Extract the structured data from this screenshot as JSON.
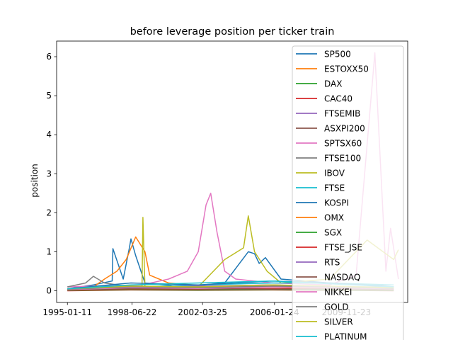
{
  "chart_data": {
    "type": "line",
    "title": "before leverage position per ticker train",
    "xlabel": "",
    "ylabel": "position",
    "xlim": [
      "1994-06-15",
      "2013-03-01"
    ],
    "ylim": [
      -0.3,
      6.4
    ],
    "x_ticks": [
      "1995-01-11",
      "1998-06-22",
      "2002-03-25",
      "2006-01-24",
      "2009-11-23"
    ],
    "y_ticks": [
      0,
      1,
      2,
      3,
      4,
      5,
      6
    ],
    "grid": false,
    "legend_position": "right",
    "series": [
      {
        "name": "SP500",
        "color": "#1f77b4",
        "x": [
          "1995-01-11",
          "1996-06-01",
          "1997-06-01",
          "1997-06-15",
          "1998-01-01",
          "1998-05-01",
          "1998-06-01",
          "1998-09-01",
          "1999-03-01",
          "2000-06-01",
          "2001-01-01",
          "2003-06-01",
          "2004-09-01",
          "2005-01-01",
          "2005-04-01",
          "2005-08-01",
          "2006-06-01",
          "2009-01-01",
          "2011-06-01",
          "2012-06-01"
        ],
        "y": [
          0.05,
          0.15,
          0.25,
          1.08,
          0.3,
          1.1,
          1.33,
          0.9,
          0.2,
          0.15,
          0.1,
          0.2,
          1.0,
          0.95,
          0.7,
          0.85,
          0.3,
          0.2,
          0.15,
          0.1
        ]
      },
      {
        "name": "ESTOXX50",
        "color": "#ff7f0e",
        "x": [
          "1995-01-11",
          "1996-06-01",
          "1997-01-01",
          "1997-09-01",
          "1998-03-01",
          "1998-09-01",
          "1999-03-01",
          "1999-06-01",
          "2000-06-01",
          "2003-01-01",
          "2006-01-01",
          "2009-01-01",
          "2012-06-01"
        ],
        "y": [
          0.05,
          0.1,
          0.3,
          0.5,
          0.8,
          1.38,
          1.0,
          0.4,
          0.2,
          0.1,
          0.1,
          0.05,
          0.05
        ]
      },
      {
        "name": "DAX",
        "color": "#2ca02c",
        "x": [
          "1995-01-11",
          "1998-06-01",
          "2002-01-01",
          "2006-01-01",
          "2009-01-01",
          "2012-06-01"
        ],
        "y": [
          0.02,
          0.05,
          0.04,
          0.03,
          0.02,
          0.02
        ]
      },
      {
        "name": "CAC40",
        "color": "#d62728",
        "x": [
          "1995-01-11",
          "1998-06-01",
          "2002-01-01",
          "2006-01-01",
          "2009-01-01",
          "2012-06-01"
        ],
        "y": [
          0.0,
          0.02,
          0.01,
          0.02,
          0.01,
          0.0
        ]
      },
      {
        "name": "FTSEMIB",
        "color": "#9467bd",
        "x": [
          "1995-01-11",
          "1998-06-01",
          "2002-01-01",
          "2006-01-01",
          "2009-01-01",
          "2012-06-01"
        ],
        "y": [
          0.03,
          0.08,
          0.05,
          0.06,
          0.04,
          0.03
        ]
      },
      {
        "name": "ASXPI200",
        "color": "#8c564b",
        "x": [
          "1995-01-11",
          "1998-06-01",
          "2002-01-01",
          "2006-01-01",
          "2009-01-01",
          "2012-06-01"
        ],
        "y": [
          0.02,
          0.04,
          0.03,
          0.05,
          0.03,
          0.02
        ]
      },
      {
        "name": "SPTSX60",
        "color": "#e377c2",
        "x": [
          "1995-01-11",
          "1999-01-01",
          "2000-06-01",
          "2001-06-01",
          "2002-01-01",
          "2002-06-01",
          "2002-09-01",
          "2003-01-01",
          "2003-06-01",
          "2004-01-01",
          "2006-01-01",
          "2009-01-01",
          "2010-06-01",
          "2011-06-01",
          "2012-01-01",
          "2012-04-01",
          "2012-09-01"
        ],
        "y": [
          0.1,
          0.15,
          0.3,
          0.5,
          1.0,
          2.2,
          2.5,
          1.5,
          0.5,
          0.3,
          0.2,
          0.15,
          0.4,
          6.1,
          0.5,
          1.6,
          0.3
        ]
      },
      {
        "name": "FTSE100",
        "color": "#7f7f7f",
        "x": [
          "1995-01-11",
          "1996-01-01",
          "1996-06-01",
          "1997-01-01",
          "1998-06-01",
          "2002-01-01",
          "2006-01-01",
          "2009-01-01",
          "2012-06-01"
        ],
        "y": [
          0.1,
          0.2,
          0.37,
          0.2,
          0.1,
          0.1,
          0.1,
          0.1,
          0.1
        ]
      },
      {
        "name": "IBOV",
        "color": "#bcbd22",
        "x": [
          "1995-01-11",
          "1999-01-01",
          "1999-01-20",
          "1999-03-01",
          "2002-01-01",
          "2003-06-01",
          "2004-06-01",
          "2004-09-01",
          "2005-01-01",
          "2005-09-01",
          "2006-06-01",
          "2009-01-01",
          "2011-01-01",
          "2012-06-01",
          "2012-09-01"
        ],
        "y": [
          0.02,
          0.05,
          1.88,
          0.1,
          0.1,
          0.8,
          1.1,
          1.92,
          1.0,
          0.5,
          0.2,
          0.3,
          1.3,
          0.8,
          1.05
        ]
      },
      {
        "name": "FTSE",
        "color": "#17becf",
        "x": [
          "1995-01-11",
          "1998-06-01",
          "2002-01-01",
          "2006-01-01",
          "2009-01-01",
          "2012-06-01"
        ],
        "y": [
          0.05,
          0.1,
          0.15,
          0.2,
          0.2,
          0.15
        ]
      },
      {
        "name": "KOSPI",
        "color": "#1f77b4",
        "x": [
          "1995-01-11",
          "1998-06-01",
          "2002-01-01",
          "2006-01-01",
          "2009-01-01",
          "2012-06-01"
        ],
        "y": [
          0.05,
          0.2,
          0.15,
          0.25,
          0.2,
          0.1
        ]
      },
      {
        "name": "OMX",
        "color": "#ff7f0e",
        "x": [
          "1995-01-11",
          "1998-06-01",
          "2002-01-01",
          "2006-01-01",
          "2009-01-01",
          "2012-06-01"
        ],
        "y": [
          0.03,
          0.1,
          0.08,
          0.12,
          0.1,
          0.08
        ]
      },
      {
        "name": "SGX",
        "color": "#2ca02c",
        "x": [
          "1995-01-11",
          "1998-06-01",
          "2002-01-01",
          "2006-01-01",
          "2009-01-01",
          "2012-06-01"
        ],
        "y": [
          0.01,
          0.03,
          0.02,
          0.03,
          0.02,
          0.01
        ]
      },
      {
        "name": "FTSE_JSE",
        "color": "#d62728",
        "x": [
          "1995-01-11",
          "1998-06-01",
          "2002-01-01",
          "2006-01-01",
          "2009-01-01",
          "2012-06-01"
        ],
        "y": [
          0.02,
          0.05,
          0.04,
          0.06,
          0.05,
          0.03
        ]
      },
      {
        "name": "RTS",
        "color": "#9467bd",
        "x": [
          "1995-01-11",
          "1998-06-01",
          "2002-01-01",
          "2006-01-01",
          "2009-01-01",
          "2012-06-01"
        ],
        "y": [
          0.04,
          0.1,
          0.12,
          0.15,
          0.1,
          0.05
        ]
      },
      {
        "name": "NASDAQ",
        "color": "#8c564b",
        "x": [
          "1995-01-11",
          "1998-06-01",
          "2002-01-01",
          "2006-01-01",
          "2009-01-01",
          "2012-06-01"
        ],
        "y": [
          0.02,
          0.06,
          0.05,
          0.04,
          0.05,
          0.03
        ]
      },
      {
        "name": "NIKKEI",
        "color": "#e377c2",
        "x": [
          "1995-01-11",
          "1998-06-01",
          "2002-01-01",
          "2006-01-01",
          "2009-01-01",
          "2012-06-01"
        ],
        "y": [
          0.03,
          0.08,
          0.06,
          0.1,
          0.08,
          0.05
        ]
      },
      {
        "name": "GOLD",
        "color": "#7f7f7f",
        "x": [
          "1995-01-11",
          "1998-06-01",
          "2002-01-01",
          "2006-01-01",
          "2009-01-01",
          "2012-06-01"
        ],
        "y": [
          0.04,
          0.1,
          0.08,
          0.12,
          0.1,
          0.06
        ]
      },
      {
        "name": "SILVER",
        "color": "#bcbd22",
        "x": [
          "1995-01-11",
          "1998-06-01",
          "2002-01-01",
          "2006-01-01",
          "2009-01-01",
          "2012-06-01"
        ],
        "y": [
          0.05,
          0.12,
          0.1,
          0.15,
          0.12,
          0.08
        ]
      },
      {
        "name": "PLATINUM",
        "color": "#17becf",
        "x": [
          "1995-01-11",
          "1998-06-01",
          "2002-01-01",
          "2006-01-01",
          "2009-01-01",
          "2012-06-01"
        ],
        "y": [
          0.05,
          0.15,
          0.2,
          0.25,
          0.18,
          0.1
        ]
      }
    ]
  }
}
